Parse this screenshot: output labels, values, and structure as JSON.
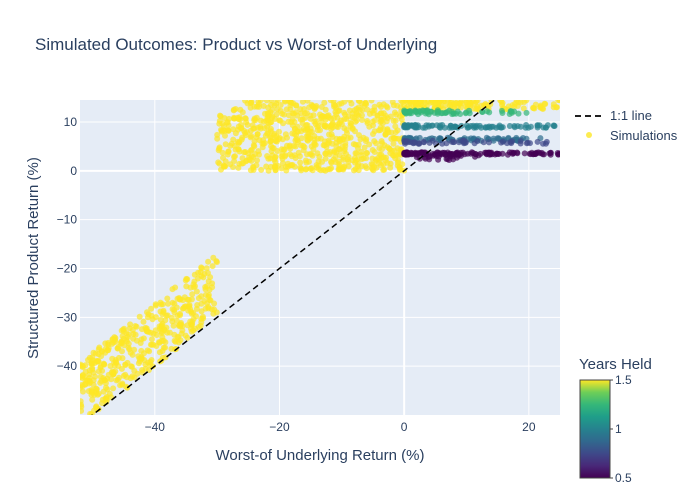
{
  "chart_data": {
    "type": "scatter",
    "title": "Simulated Outcomes: Product vs Worst-of Underlying",
    "xlabel": "Worst-of Underlying Return (%)",
    "ylabel": "Structured Product Return (%)",
    "xlim": [
      -52,
      25
    ],
    "ylim": [
      -50,
      14.5
    ],
    "x_ticks": [
      -40,
      -20,
      0,
      20
    ],
    "x_tick_labels": [
      "−40",
      "−20",
      "0",
      "20"
    ],
    "y_ticks": [
      -40,
      -30,
      -20,
      -10,
      0,
      10
    ],
    "y_tick_labels": [
      "−40",
      "−30",
      "−20",
      "−10",
      "0",
      "10"
    ],
    "grid": true,
    "legend_position": "top-right",
    "legend": [
      "1:1 line",
      "Simulations"
    ],
    "colorbar": {
      "title": "Years Held",
      "range": [
        0.5,
        1.5
      ],
      "ticks": [
        0.5,
        1,
        1.5
      ],
      "tick_labels": [
        "0.5",
        "1",
        "1.5"
      ],
      "colorscale": "Viridis"
    },
    "series": [
      {
        "name": "1:1 line",
        "type": "line",
        "style": "dashed",
        "color": "#000000",
        "x": [
          -52,
          25
        ],
        "y": [
          -52,
          25
        ]
      },
      {
        "name": "Simulations",
        "type": "scatter",
        "color_by": "Years Held",
        "clusters": [
          {
            "years": 1.5,
            "x_range": [
              -30,
              0
            ],
            "y_range": [
              0,
              14.5
            ],
            "count": 700
          },
          {
            "years": 1.5,
            "x_range": [
              0,
              25
            ],
            "y_range": [
              12.5,
              14.5
            ],
            "count": 140
          },
          {
            "years": 1.5,
            "x_range": [
              -52,
              -30
            ],
            "y_relation": "y = x + noise[0, 13]",
            "count": 420
          },
          {
            "years": 1.25,
            "x_range": [
              0,
              20
            ],
            "y_range": [
              11.6,
              12.4
            ],
            "count": 70
          },
          {
            "years": 1.0,
            "x_range": [
              0,
              25
            ],
            "y_range": [
              8.8,
              9.4
            ],
            "count": 90
          },
          {
            "years": 0.9,
            "x_range": [
              0,
              22
            ],
            "y_range": [
              6.1,
              6.8
            ],
            "count": 80
          },
          {
            "years": 0.75,
            "x_range": [
              0,
              25
            ],
            "y_range": [
              5.5,
              6.2
            ],
            "count": 50
          },
          {
            "years": 0.5,
            "x_range": [
              0,
              25
            ],
            "y_range": [
              3.3,
              3.8
            ],
            "count": 130
          },
          {
            "years": 0.5,
            "x_range": [
              2,
              12
            ],
            "y_range": [
              2.2,
              3.3
            ],
            "count": 25
          }
        ]
      }
    ]
  }
}
